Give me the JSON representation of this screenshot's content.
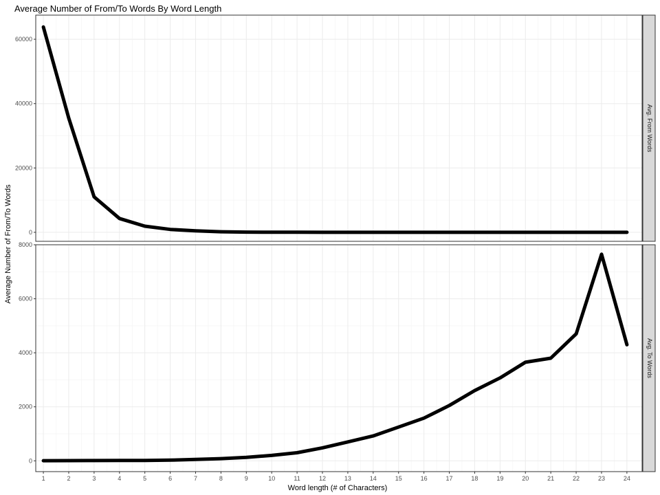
{
  "chart_data": {
    "type": "line",
    "title": "Average Number of From/To Words By Word Length",
    "xlabel": "Word length (# of Characters)",
    "ylabel": "Average Number of From/To Words",
    "x": [
      1,
      2,
      3,
      4,
      5,
      6,
      7,
      8,
      9,
      10,
      11,
      12,
      13,
      14,
      15,
      16,
      17,
      18,
      19,
      20,
      21,
      22,
      23,
      24
    ],
    "xlim": [
      0.7,
      24.6
    ],
    "grid": true,
    "facets": [
      {
        "strip_label": "Avg. From Words",
        "ylim": [
          -2800,
          67500
        ],
        "y_ticks": [
          0,
          20000,
          40000,
          60000
        ],
        "values": [
          63800,
          35500,
          11000,
          4300,
          1900,
          900,
          450,
          180,
          60,
          25,
          10,
          5,
          3,
          2,
          2,
          2,
          2,
          2,
          2,
          2,
          2,
          2,
          2,
          2
        ]
      },
      {
        "strip_label": "Avg. To Words",
        "ylim": [
          -400,
          8000
        ],
        "y_ticks": [
          0,
          2000,
          4000,
          6000,
          8000
        ],
        "values": [
          5,
          8,
          10,
          12,
          15,
          25,
          50,
          80,
          130,
          200,
          300,
          480,
          700,
          920,
          1250,
          1580,
          2050,
          2600,
          3070,
          3650,
          3800,
          4700,
          7650,
          4300
        ]
      }
    ]
  }
}
